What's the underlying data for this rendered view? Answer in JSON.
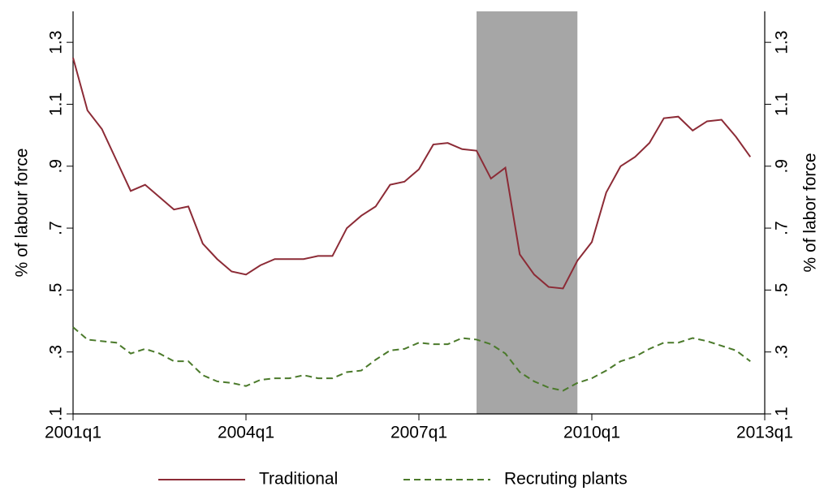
{
  "chart_data": {
    "type": "line",
    "y_label": "% of labour force",
    "y2_label": "% of labor force",
    "x": [
      2001,
      2001.25,
      2001.5,
      2001.75,
      2002,
      2002.25,
      2002.5,
      2002.75,
      2003,
      2003.25,
      2003.5,
      2003.75,
      2004,
      2004.25,
      2004.5,
      2004.75,
      2005,
      2005.25,
      2005.5,
      2005.75,
      2006,
      2006.25,
      2006.5,
      2006.75,
      2007,
      2007.25,
      2007.5,
      2007.75,
      2008,
      2008.25,
      2008.5,
      2008.75,
      2009,
      2009.25,
      2009.5,
      2009.75,
      2010,
      2010.25,
      2010.5,
      2010.75,
      2011,
      2011.25,
      2011.5,
      2011.75,
      2012,
      2012.25,
      2012.5,
      2012.75
    ],
    "series": [
      {
        "name": "Traditional",
        "color": "#8c2b36",
        "dash": "solid",
        "values": [
          1.25,
          1.08,
          1.02,
          0.92,
          0.82,
          0.84,
          0.8,
          0.76,
          0.77,
          0.65,
          0.6,
          0.56,
          0.55,
          0.58,
          0.6,
          0.6,
          0.6,
          0.61,
          0.61,
          0.7,
          0.74,
          0.77,
          0.84,
          0.85,
          0.89,
          0.97,
          0.975,
          0.955,
          0.95,
          0.86,
          0.895,
          0.615,
          0.55,
          0.51,
          0.505,
          0.595,
          0.655,
          0.815,
          0.9,
          0.93,
          0.975,
          1.055,
          1.06,
          1.015,
          1.045,
          1.05,
          0.995,
          0.93
        ]
      },
      {
        "name": "Recruting plants",
        "color": "#4b7a2b",
        "dash": "dashed",
        "values": [
          0.38,
          0.34,
          0.335,
          0.33,
          0.295,
          0.31,
          0.295,
          0.27,
          0.27,
          0.225,
          0.205,
          0.2,
          0.19,
          0.21,
          0.215,
          0.215,
          0.225,
          0.215,
          0.215,
          0.235,
          0.24,
          0.275,
          0.305,
          0.31,
          0.33,
          0.325,
          0.325,
          0.345,
          0.34,
          0.325,
          0.295,
          0.235,
          0.205,
          0.185,
          0.175,
          0.2,
          0.215,
          0.24,
          0.27,
          0.285,
          0.31,
          0.33,
          0.33,
          0.345,
          0.335,
          0.32,
          0.305,
          0.27
        ]
      }
    ],
    "shaded_x": [
      2008,
      2009.75
    ],
    "shade_color": "#a6a6a6",
    "xlim": [
      2001,
      2013
    ],
    "xticks": [
      {
        "value": 2001,
        "label": "2001q1"
      },
      {
        "value": 2004,
        "label": "2004q1"
      },
      {
        "value": 2007,
        "label": "2007q1"
      },
      {
        "value": 2010,
        "label": "2010q1"
      },
      {
        "value": 2013,
        "label": "2013q1"
      }
    ],
    "ylim": [
      0.1,
      1.4
    ],
    "yticks": [
      {
        "value": 0.1,
        "label": ".1"
      },
      {
        "value": 0.3,
        "label": ".3"
      },
      {
        "value": 0.5,
        "label": ".5"
      },
      {
        "value": 0.7,
        "label": ".7"
      },
      {
        "value": 0.9,
        "label": ".9"
      },
      1.1,
      1.3
    ],
    "y2lim": [
      0.1,
      1.4
    ],
    "y2ticks": [
      {
        "value": 0.1,
        "label": ".1"
      },
      {
        "value": 0.3,
        "label": ".3"
      },
      {
        "value": 0.5,
        "label": ".5"
      },
      {
        "value": 0.7,
        "label": ".7"
      },
      {
        "value": 0.9,
        "label": ".9"
      },
      1.1,
      1.3
    ],
    "legend": "bottom"
  }
}
